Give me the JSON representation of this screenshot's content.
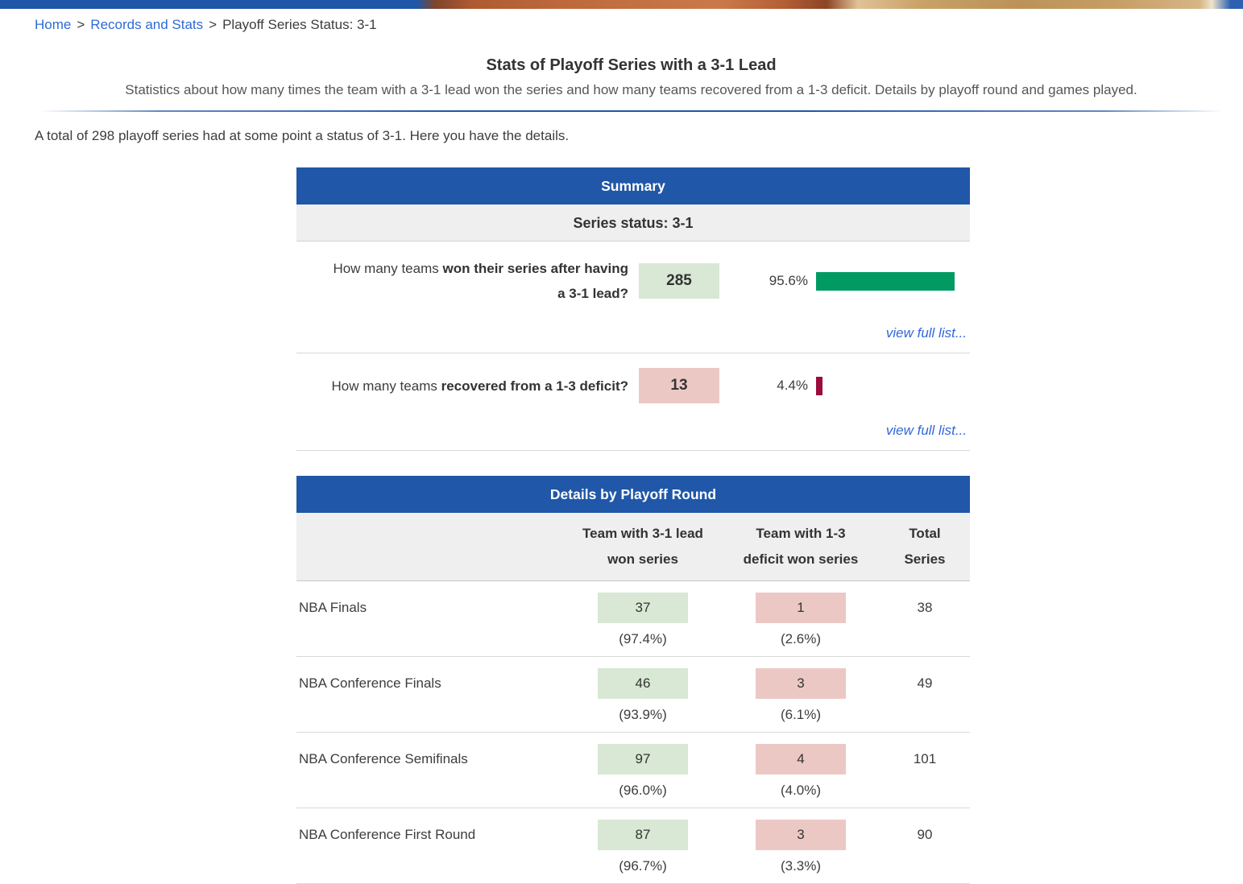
{
  "colors": {
    "header_blue": "#2057a8",
    "link_blue": "#2e6bd6",
    "band_gray": "#efefef",
    "win_box": "#d8e8d4",
    "loss_box": "#ecc8c5",
    "win_bar": "#009a62",
    "loss_bar": "#9c0c3c"
  },
  "breadcrumb": {
    "separator": ">",
    "home": "Home",
    "section": "Records and Stats",
    "current": "Playoff Series Status: 3-1"
  },
  "header": {
    "title": "Stats of Playoff Series with a 3-1 Lead",
    "subtitle": "Statistics about how many times the team with a 3-1 lead won the series and how many teams recovered from a 1-3 deficit. Details by playoff round and games played."
  },
  "intro": "A total of 298 playoff series had at some point a status of 3-1. Here you have the details.",
  "summary": {
    "title": "Summary",
    "subtitle": "Series status: 3-1",
    "rows": [
      {
        "question_normal": "How many teams ",
        "question_bold": "won their series after having a 3-1 lead?",
        "value": "285",
        "percent_label": "95.6%",
        "percent_value": 95.6,
        "link_label": "view full list..."
      },
      {
        "question_normal": "How many teams ",
        "question_bold": "recovered from a 1-3 deficit?",
        "value": "13",
        "percent_label": "4.4%",
        "percent_value": 4.4,
        "link_label": "view full list..."
      }
    ]
  },
  "details": {
    "title": "Details by Playoff Round",
    "columns": {
      "won": "Team with 3-1 lead won series",
      "lost": "Team with 1-3 deficit won series",
      "total": "Total Series"
    },
    "rows": [
      {
        "round": "NBA Finals",
        "won": "37",
        "won_pct": "(97.4%)",
        "lost": "1",
        "lost_pct": "(2.6%)",
        "total": "38"
      },
      {
        "round": "NBA Conference Finals",
        "won": "46",
        "won_pct": "(93.9%)",
        "lost": "3",
        "lost_pct": "(6.1%)",
        "total": "49"
      },
      {
        "round": "NBA Conference Semifinals",
        "won": "97",
        "won_pct": "(96.0%)",
        "lost": "4",
        "lost_pct": "(4.0%)",
        "total": "101"
      },
      {
        "round": "NBA Conference First Round",
        "won": "87",
        "won_pct": "(96.7%)",
        "lost": "3",
        "lost_pct": "(3.3%)",
        "total": "90"
      }
    ]
  }
}
